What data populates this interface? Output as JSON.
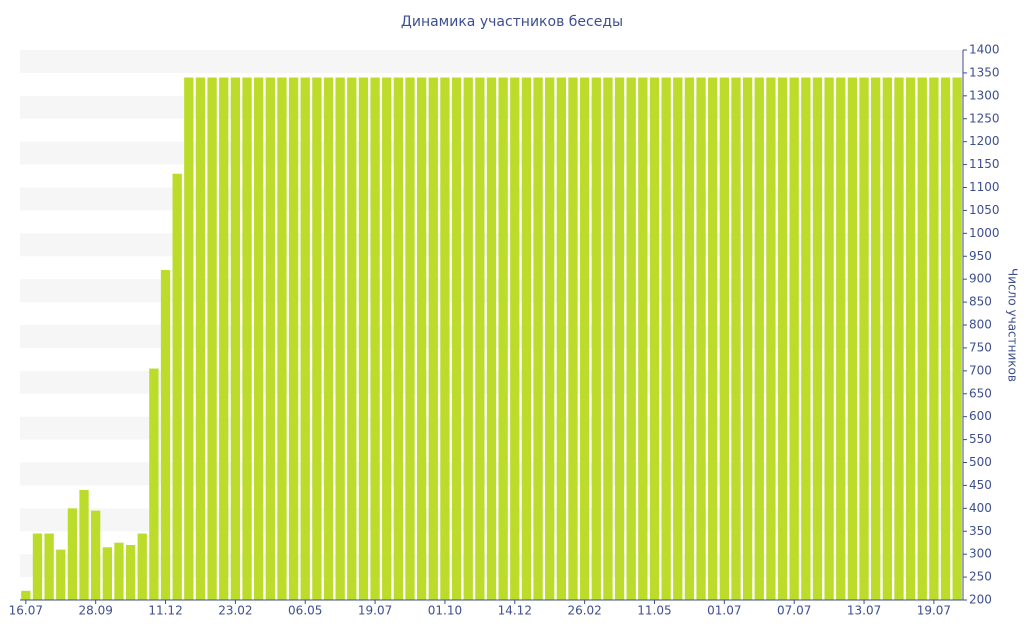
{
  "chart_data": {
    "type": "bar",
    "title": "Динамика участников беседы",
    "y_label": "Число участников",
    "categories": [
      "16.07",
      null,
      null,
      null,
      null,
      null,
      "28.09",
      null,
      null,
      null,
      null,
      null,
      "11.12",
      null,
      null,
      null,
      null,
      null,
      "23.02",
      null,
      null,
      null,
      null,
      null,
      "06.05",
      null,
      null,
      null,
      null,
      null,
      "19.07",
      null,
      null,
      null,
      null,
      null,
      "01.10",
      null,
      null,
      null,
      null,
      null,
      "14.12",
      null,
      null,
      null,
      null,
      null,
      "26.02",
      null,
      null,
      null,
      null,
      null,
      "11.05",
      null,
      null,
      null,
      null,
      null,
      "01.07",
      null,
      null,
      null,
      null,
      null,
      "07.07",
      null,
      null,
      null,
      null,
      null,
      "13.07",
      null,
      null,
      null,
      null,
      null,
      "19.07",
      null,
      null
    ],
    "values": [
      220,
      345,
      345,
      310,
      400,
      440,
      395,
      315,
      325,
      320,
      345,
      705,
      920,
      1130,
      1340,
      1340,
      1340,
      1340,
      1340,
      1340,
      1340,
      1340,
      1340,
      1340,
      1340,
      1340,
      1340,
      1340,
      1340,
      1340,
      1340,
      1340,
      1340,
      1340,
      1340,
      1340,
      1340,
      1340,
      1340,
      1340,
      1340,
      1340,
      1340,
      1340,
      1340,
      1340,
      1340,
      1340,
      1340,
      1340,
      1340,
      1340,
      1340,
      1340,
      1340,
      1340,
      1340,
      1340,
      1340,
      1340,
      1340,
      1340,
      1340,
      1340,
      1340,
      1340,
      1340,
      1340,
      1340,
      1340,
      1340,
      1340,
      1340,
      1340,
      1340,
      1340,
      1340,
      1340,
      1340,
      1340,
      1340
    ],
    "color": "#bcdc2b",
    "ylim": [
      200,
      1400
    ],
    "yticks": [
      200,
      250,
      300,
      350,
      400,
      450,
      500,
      550,
      600,
      650,
      700,
      750,
      800,
      850,
      900,
      950,
      1000,
      1050,
      1100,
      1150,
      1200,
      1250,
      1300,
      1350,
      1400
    ],
    "grid": "bands",
    "y_axis_side": "right"
  }
}
